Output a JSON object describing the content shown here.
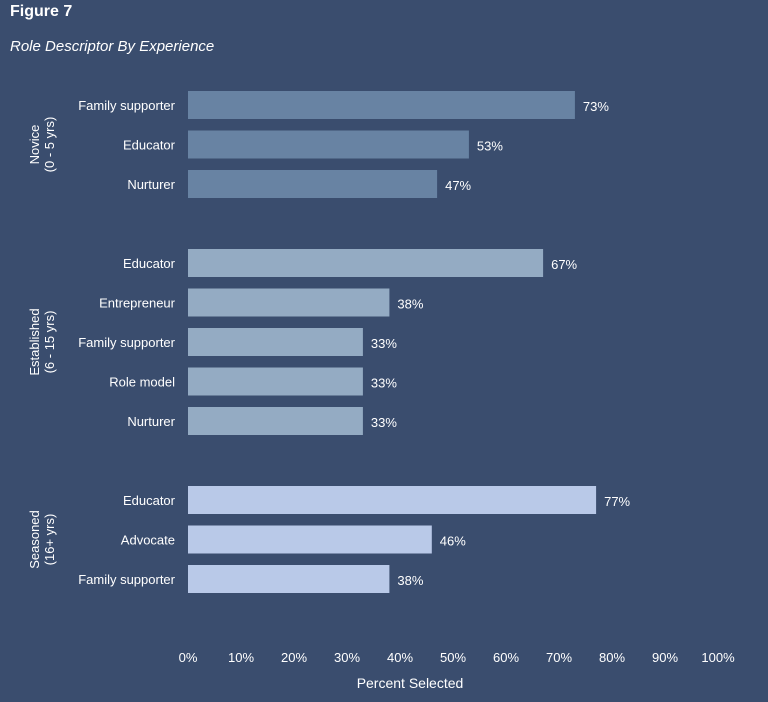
{
  "figure_label": "Figure 7",
  "chart_data": {
    "type": "bar",
    "orientation": "horizontal",
    "title": "Role Descriptor By Experience",
    "xlabel": "Percent Selected",
    "xlim": [
      0,
      100
    ],
    "xticks": [
      "0%",
      "10%",
      "20%",
      "30%",
      "40%",
      "50%",
      "60%",
      "70%",
      "80%",
      "90%",
      "100%"
    ],
    "grid": false,
    "groups": [
      {
        "name_lines": [
          "Novice",
          "(0 - 5 yrs)"
        ],
        "color": "#6883a3",
        "bars": [
          {
            "label": "Family supporter",
            "value": 73,
            "value_label": "73%"
          },
          {
            "label": "Educator",
            "value": 53,
            "value_label": "53%"
          },
          {
            "label": "Nurturer",
            "value": 47,
            "value_label": "47%"
          }
        ]
      },
      {
        "name_lines": [
          "Established",
          "(6 - 15 yrs)"
        ],
        "color": "#94abc3",
        "bars": [
          {
            "label": "Educator",
            "value": 67,
            "value_label": "67%"
          },
          {
            "label": "Entrepreneur",
            "value": 38,
            "value_label": "38%"
          },
          {
            "label": "Family supporter",
            "value": 33,
            "value_label": "33%"
          },
          {
            "label": "Role model",
            "value": 33,
            "value_label": "33%"
          },
          {
            "label": "Nurturer",
            "value": 33,
            "value_label": "33%"
          }
        ]
      },
      {
        "name_lines": [
          "Seasoned",
          "(16+ yrs)"
        ],
        "color": "#b9c9e8",
        "bars": [
          {
            "label": "Educator",
            "value": 77,
            "value_label": "77%"
          },
          {
            "label": "Advocate",
            "value": 46,
            "value_label": "46%"
          },
          {
            "label": "Family supporter",
            "value": 38,
            "value_label": "38%"
          }
        ]
      }
    ]
  }
}
